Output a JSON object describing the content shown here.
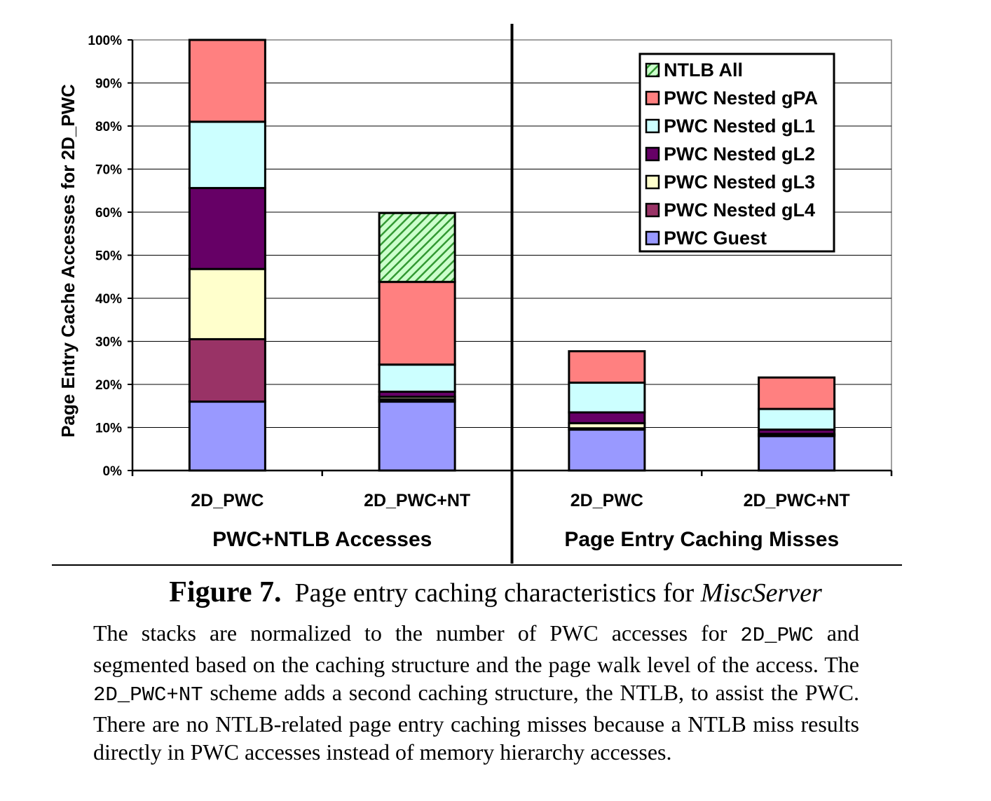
{
  "chart_data": {
    "type": "bar",
    "stacked": true,
    "ylabel": "Page Entry Cache Accesses for 2D_PWC",
    "ylim": [
      0,
      100
    ],
    "yticks": [
      "0%",
      "10%",
      "20%",
      "30%",
      "40%",
      "50%",
      "60%",
      "70%",
      "80%",
      "90%",
      "100%"
    ],
    "yunit": "%",
    "groups": [
      "PWC+NTLB Accesses",
      "Page Entry Caching Misses"
    ],
    "categories": [
      "2D_PWC",
      "2D_PWC+NT",
      "2D_PWC",
      "2D_PWC+NT"
    ],
    "category_group": [
      0,
      0,
      1,
      1
    ],
    "legend_position": "top-right",
    "grid": true,
    "series": [
      {
        "name": "PWC Guest",
        "color": "#9999ff",
        "values": [
          16.0,
          16.0,
          9.5,
          8.0
        ]
      },
      {
        "name": "PWC Nested gL4",
        "color": "#993366",
        "values": [
          14.5,
          0.5,
          0.3,
          0.3
        ]
      },
      {
        "name": "PWC Nested gL3",
        "color": "#ffffcc",
        "values": [
          16.3,
          0.6,
          1.2,
          0.2
        ]
      },
      {
        "name": "PWC Nested gL2",
        "color": "#660066",
        "values": [
          18.8,
          1.2,
          2.5,
          1.0
        ]
      },
      {
        "name": "PWC Nested gL1",
        "color": "#ccffff",
        "values": [
          15.4,
          6.3,
          6.9,
          4.8
        ]
      },
      {
        "name": "PWC Nested gPA",
        "color": "#ff8080",
        "values": [
          19.0,
          19.2,
          7.3,
          7.3
        ]
      },
      {
        "name": "NTLB All",
        "color": "#66cc66",
        "pattern": "hatch",
        "values": [
          0,
          16.0,
          0,
          0
        ]
      }
    ],
    "legend_order": [
      "NTLB All",
      "PWC Nested gPA",
      "PWC Nested gL1",
      "PWC Nested gL2",
      "PWC Nested gL3",
      "PWC Nested gL4",
      "PWC Guest"
    ]
  },
  "caption": {
    "number": "Figure 7.",
    "text": "Page entry caching characteristics for",
    "emphasis": "MiscServer",
    "body": [
      {
        "t": "The stacks are normalized to the number of PWC accesses for "
      },
      {
        "t": "2D_PWC",
        "mono": true
      },
      {
        "t": " and segmented based on the caching structure and the page walk level of the access. The "
      },
      {
        "t": "2D_PWC+NT",
        "mono": true
      },
      {
        "t": " scheme adds a second caching structure, the NTLB, to assist the PWC. There are no NTLB-related page entry caching misses because a NTLB miss results directly in PWC accesses instead of memory hierarchy accesses."
      }
    ]
  }
}
